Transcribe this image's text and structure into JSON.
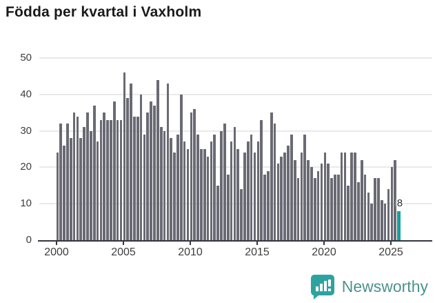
{
  "title": "Födda per kvartal i Vaxholm",
  "chart_data": {
    "type": "bar",
    "title": "Födda per kvartal i Vaxholm",
    "xlabel": "",
    "ylabel": "",
    "ylim": [
      0,
      50
    ],
    "y_ticks": [
      0,
      10,
      20,
      30,
      40,
      50
    ],
    "x_tick_labels": [
      "2000",
      "2005",
      "2010",
      "2015",
      "2020",
      "2025"
    ],
    "grid": "horizontal",
    "legend": "none",
    "bar_color": "#6a6a74",
    "highlight_color": "#13a1a1",
    "highlight_index": 102,
    "highlight_label": "8",
    "categories": [
      "2000Q1",
      "2000Q2",
      "2000Q3",
      "2000Q4",
      "2001Q1",
      "2001Q2",
      "2001Q3",
      "2001Q4",
      "2002Q1",
      "2002Q2",
      "2002Q3",
      "2002Q4",
      "2003Q1",
      "2003Q2",
      "2003Q3",
      "2003Q4",
      "2004Q1",
      "2004Q2",
      "2004Q3",
      "2004Q4",
      "2005Q1",
      "2005Q2",
      "2005Q3",
      "2005Q4",
      "2006Q1",
      "2006Q2",
      "2006Q3",
      "2006Q4",
      "2007Q1",
      "2007Q2",
      "2007Q3",
      "2007Q4",
      "2008Q1",
      "2008Q2",
      "2008Q3",
      "2008Q4",
      "2009Q1",
      "2009Q2",
      "2009Q3",
      "2009Q4",
      "2010Q1",
      "2010Q2",
      "2010Q3",
      "2010Q4",
      "2011Q1",
      "2011Q2",
      "2011Q3",
      "2011Q4",
      "2012Q1",
      "2012Q2",
      "2012Q3",
      "2012Q4",
      "2013Q1",
      "2013Q2",
      "2013Q3",
      "2013Q4",
      "2014Q1",
      "2014Q2",
      "2014Q3",
      "2014Q4",
      "2015Q1",
      "2015Q2",
      "2015Q3",
      "2015Q4",
      "2016Q1",
      "2016Q2",
      "2016Q3",
      "2016Q4",
      "2017Q1",
      "2017Q2",
      "2017Q3",
      "2017Q4",
      "2018Q1",
      "2018Q2",
      "2018Q3",
      "2018Q4",
      "2019Q1",
      "2019Q2",
      "2019Q3",
      "2019Q4",
      "2020Q1",
      "2020Q2",
      "2020Q3",
      "2020Q4",
      "2021Q1",
      "2021Q2",
      "2021Q3",
      "2021Q4",
      "2022Q1",
      "2022Q2",
      "2022Q3",
      "2022Q4",
      "2023Q1",
      "2023Q2",
      "2023Q3",
      "2023Q4",
      "2024Q1",
      "2024Q2",
      "2024Q3",
      "2024Q4",
      "2025Q1",
      "2025Q2",
      "2025Q3"
    ],
    "values": [
      24,
      32,
      26,
      32,
      28,
      35,
      34,
      28,
      31,
      35,
      30,
      37,
      27,
      33,
      35,
      33,
      33,
      38,
      33,
      33,
      46,
      39,
      43,
      34,
      34,
      40,
      29,
      35,
      38,
      37,
      44,
      31,
      30,
      43,
      28,
      24,
      29,
      40,
      27,
      25,
      35,
      36,
      29,
      25,
      25,
      23,
      27,
      29,
      15,
      30,
      32,
      18,
      27,
      31,
      25,
      14,
      24,
      27,
      29,
      24,
      27,
      33,
      18,
      19,
      35,
      32,
      21,
      23,
      24,
      26,
      29,
      22,
      17,
      24,
      29,
      22,
      20,
      17,
      19,
      21,
      24,
      21,
      17,
      18,
      18,
      24,
      24,
      15,
      24,
      24,
      16,
      22,
      18,
      13,
      10,
      17,
      17,
      11,
      10,
      14,
      20,
      22,
      8
    ]
  },
  "branding": {
    "logo_text": "Newsworthy",
    "logo_icon": "bar-chart-speech-bubble-icon",
    "logo_color": "#2da39f"
  }
}
